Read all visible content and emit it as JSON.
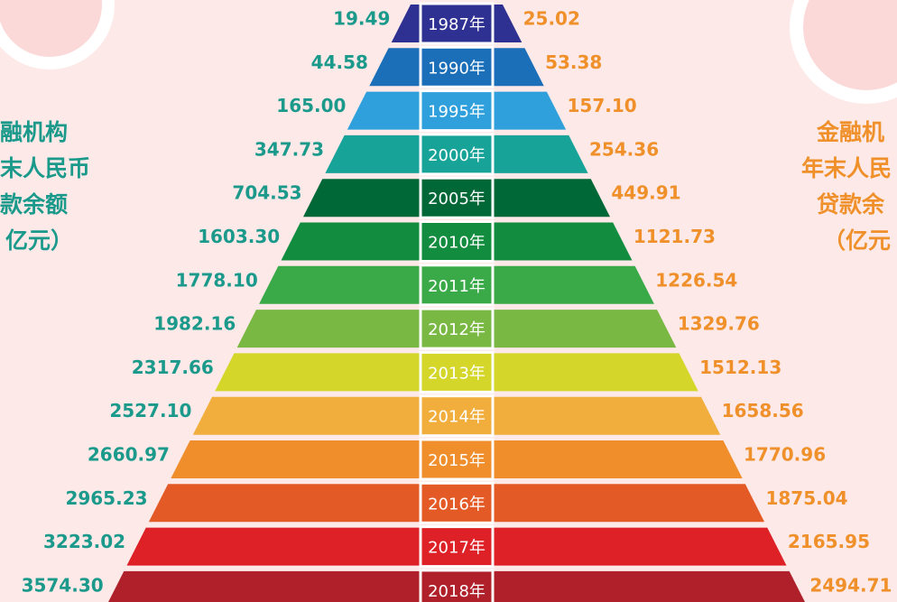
{
  "left_label": [
    "融机构",
    "末人民币",
    "款余额",
    "亿元）"
  ],
  "right_label": [
    "金融机",
    "年末人民",
    "贷款余",
    "（亿元"
  ],
  "rows": [
    {
      "year": "1987年",
      "deposit": "19.49",
      "loan": "25.02",
      "color": "#2e3192"
    },
    {
      "year": "1990年",
      "deposit": "44.58",
      "loan": "53.38",
      "color": "#1a6fb8"
    },
    {
      "year": "1995年",
      "deposit": "165.00",
      "loan": "157.10",
      "color": "#2fa0dc"
    },
    {
      "year": "2000年",
      "deposit": "347.73",
      "loan": "254.36",
      "color": "#17a398"
    },
    {
      "year": "2005年",
      "deposit": "704.53",
      "loan": "449.91",
      "color": "#006837"
    },
    {
      "year": "2010年",
      "deposit": "1603.30",
      "loan": "1121.73",
      "color": "#128c3e"
    },
    {
      "year": "2011年",
      "deposit": "1778.10",
      "loan": "1226.54",
      "color": "#3aaa48"
    },
    {
      "year": "2012年",
      "deposit": "1982.16",
      "loan": "1329.76",
      "color": "#7ab844"
    },
    {
      "year": "2013年",
      "deposit": "2317.66",
      "loan": "1512.13",
      "color": "#d4d62a"
    },
    {
      "year": "2014年",
      "deposit": "2527.10",
      "loan": "1658.56",
      "color": "#f2ae3d"
    },
    {
      "year": "2015年",
      "deposit": "2660.97",
      "loan": "1770.96",
      "color": "#ef8e2a"
    },
    {
      "year": "2016年",
      "deposit": "2965.23",
      "loan": "1875.04",
      "color": "#e45a26"
    },
    {
      "year": "2017年",
      "deposit": "3223.02",
      "loan": "2165.95",
      "color": "#dd2127"
    },
    {
      "year": "2018年",
      "deposit": "3574.30",
      "loan": "2494.71",
      "color": "#b0202a"
    }
  ]
}
